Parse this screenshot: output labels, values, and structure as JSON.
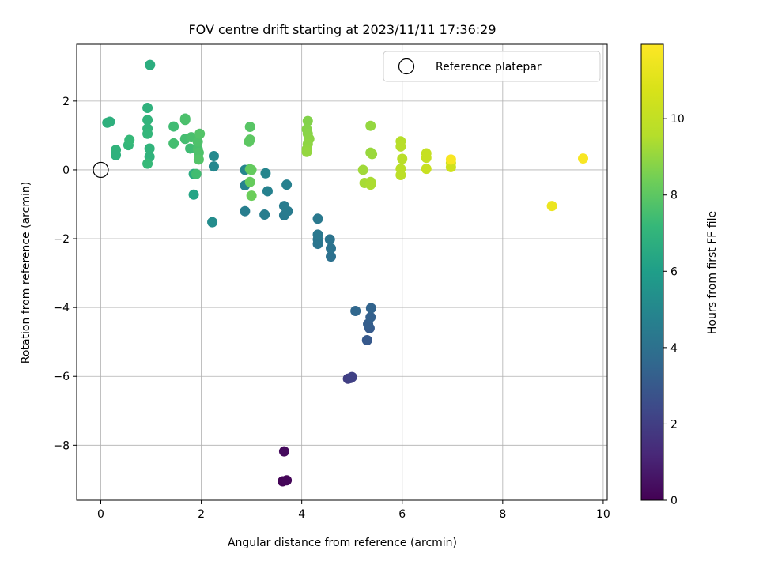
{
  "chart_data": {
    "type": "scatter",
    "title": "FOV centre drift starting at 2023/11/11 17:36:29",
    "xlabel": "Angular distance from reference (arcmin)",
    "ylabel": "Rotation from reference (arcmin)",
    "xlim": [
      -0.48,
      10.08
    ],
    "ylim": [
      -9.6,
      3.65
    ],
    "xticks": [
      0,
      2,
      4,
      6,
      8,
      10
    ],
    "yticks": [
      -8,
      -6,
      -4,
      -2,
      0,
      2
    ],
    "grid": true,
    "legend": {
      "placement": "upper right",
      "entries": [
        "Reference platepar"
      ]
    },
    "reference_point": {
      "x": 0,
      "y": 0
    },
    "colorbar": {
      "label": "Hours from first FF file",
      "min": 0,
      "max": 11.95,
      "ticks": [
        0,
        2,
        4,
        6,
        8,
        10
      ],
      "colormap": "viridis"
    },
    "series": [
      {
        "points": [
          {
            "x": 3.62,
            "y": -9.05,
            "h": 0.1
          },
          {
            "x": 3.7,
            "y": -9.02,
            "h": 0.15
          },
          {
            "x": 3.65,
            "y": -8.18,
            "h": 0.3
          },
          {
            "x": 4.92,
            "y": -6.07,
            "h": 2.0
          },
          {
            "x": 4.97,
            "y": -6.05,
            "h": 2.05
          },
          {
            "x": 5.0,
            "y": -6.02,
            "h": 2.1
          },
          {
            "x": 5.3,
            "y": -4.95,
            "h": 3.0
          },
          {
            "x": 5.35,
            "y": -4.6,
            "h": 3.1
          },
          {
            "x": 5.32,
            "y": -4.48,
            "h": 3.2
          },
          {
            "x": 5.37,
            "y": -4.28,
            "h": 3.3
          },
          {
            "x": 5.38,
            "y": -4.02,
            "h": 3.45
          },
          {
            "x": 5.07,
            "y": -4.1,
            "h": 3.6
          },
          {
            "x": 4.58,
            "y": -2.52,
            "h": 4.0
          },
          {
            "x": 4.58,
            "y": -2.28,
            "h": 4.1
          },
          {
            "x": 4.56,
            "y": -2.02,
            "h": 4.15
          },
          {
            "x": 4.32,
            "y": -2.15,
            "h": 4.2
          },
          {
            "x": 4.32,
            "y": -2.02,
            "h": 4.25
          },
          {
            "x": 4.32,
            "y": -1.88,
            "h": 4.3
          },
          {
            "x": 4.32,
            "y": -1.42,
            "h": 4.35
          },
          {
            "x": 3.65,
            "y": -1.32,
            "h": 4.4
          },
          {
            "x": 3.72,
            "y": -1.2,
            "h": 4.45
          },
          {
            "x": 3.65,
            "y": -1.05,
            "h": 4.5
          },
          {
            "x": 3.26,
            "y": -1.3,
            "h": 4.55
          },
          {
            "x": 2.87,
            "y": -1.2,
            "h": 4.6
          },
          {
            "x": 3.7,
            "y": -0.43,
            "h": 4.7
          },
          {
            "x": 3.32,
            "y": -0.62,
            "h": 4.75
          },
          {
            "x": 2.87,
            "y": -0.45,
            "h": 4.8
          },
          {
            "x": 3.28,
            "y": -0.1,
            "h": 4.9
          },
          {
            "x": 2.87,
            "y": 0.0,
            "h": 4.95
          },
          {
            "x": 2.25,
            "y": 0.1,
            "h": 5.0
          },
          {
            "x": 2.25,
            "y": 0.4,
            "h": 5.1
          },
          {
            "x": 2.22,
            "y": -1.52,
            "h": 5.2
          },
          {
            "x": 1.85,
            "y": -0.72,
            "h": 6.3
          },
          {
            "x": 0.98,
            "y": 3.05,
            "h": 6.7
          },
          {
            "x": 0.93,
            "y": 1.8,
            "h": 6.9
          },
          {
            "x": 0.93,
            "y": 1.45,
            "h": 7.0
          },
          {
            "x": 0.93,
            "y": 1.2,
            "h": 7.05
          },
          {
            "x": 0.93,
            "y": 1.05,
            "h": 7.1
          },
          {
            "x": 0.97,
            "y": 0.62,
            "h": 7.0
          },
          {
            "x": 0.97,
            "y": 0.38,
            "h": 6.95
          },
          {
            "x": 0.93,
            "y": 0.18,
            "h": 7.2
          },
          {
            "x": 0.18,
            "y": 1.4,
            "h": 6.8
          },
          {
            "x": 0.13,
            "y": 1.37,
            "h": 6.85
          },
          {
            "x": 0.3,
            "y": 0.58,
            "h": 7.0
          },
          {
            "x": 0.3,
            "y": 0.43,
            "h": 6.9
          },
          {
            "x": 0.55,
            "y": 0.72,
            "h": 7.1
          },
          {
            "x": 0.57,
            "y": 0.87,
            "h": 7.2
          },
          {
            "x": 1.45,
            "y": 1.26,
            "h": 7.4
          },
          {
            "x": 1.45,
            "y": 0.77,
            "h": 7.5
          },
          {
            "x": 1.68,
            "y": 1.45,
            "h": 7.6
          },
          {
            "x": 1.68,
            "y": 1.49,
            "h": 7.65
          },
          {
            "x": 1.68,
            "y": 0.9,
            "h": 7.5
          },
          {
            "x": 1.78,
            "y": 0.62,
            "h": 7.4
          },
          {
            "x": 1.8,
            "y": 0.95,
            "h": 7.6
          },
          {
            "x": 1.85,
            "y": -0.12,
            "h": 6.6
          },
          {
            "x": 1.9,
            "y": -0.12,
            "h": 7.45
          },
          {
            "x": 1.93,
            "y": 0.6,
            "h": 7.6
          },
          {
            "x": 1.93,
            "y": 0.82,
            "h": 7.7
          },
          {
            "x": 1.97,
            "y": 1.05,
            "h": 7.8
          },
          {
            "x": 1.95,
            "y": 0.5,
            "h": 7.7
          },
          {
            "x": 1.95,
            "y": 0.3,
            "h": 7.8
          },
          {
            "x": 2.97,
            "y": 1.25,
            "h": 7.9
          },
          {
            "x": 2.97,
            "y": 0.88,
            "h": 8.0
          },
          {
            "x": 2.95,
            "y": 0.82,
            "h": 8.0
          },
          {
            "x": 2.97,
            "y": 0.02,
            "h": 8.1
          },
          {
            "x": 3.0,
            "y": 0.0,
            "h": 8.15
          },
          {
            "x": 2.97,
            "y": -0.35,
            "h": 8.2
          },
          {
            "x": 3.0,
            "y": -0.75,
            "h": 8.3
          },
          {
            "x": 4.12,
            "y": 1.42,
            "h": 8.7
          },
          {
            "x": 4.1,
            "y": 1.18,
            "h": 8.75
          },
          {
            "x": 4.12,
            "y": 1.05,
            "h": 8.8
          },
          {
            "x": 4.15,
            "y": 0.9,
            "h": 8.85
          },
          {
            "x": 4.12,
            "y": 0.75,
            "h": 8.9
          },
          {
            "x": 4.1,
            "y": 0.6,
            "h": 8.95
          },
          {
            "x": 4.1,
            "y": 0.52,
            "h": 9.0
          },
          {
            "x": 5.37,
            "y": 1.28,
            "h": 9.0
          },
          {
            "x": 5.37,
            "y": 0.5,
            "h": 9.05
          },
          {
            "x": 5.4,
            "y": 0.46,
            "h": 9.1
          },
          {
            "x": 5.22,
            "y": 0.0,
            "h": 9.2
          },
          {
            "x": 5.25,
            "y": -0.38,
            "h": 9.3
          },
          {
            "x": 5.37,
            "y": -0.35,
            "h": 9.35
          },
          {
            "x": 5.37,
            "y": -0.43,
            "h": 9.4
          },
          {
            "x": 5.97,
            "y": 0.83,
            "h": 9.6
          },
          {
            "x": 5.97,
            "y": 0.68,
            "h": 9.65
          },
          {
            "x": 6.0,
            "y": 0.32,
            "h": 9.7
          },
          {
            "x": 5.97,
            "y": 0.03,
            "h": 9.75
          },
          {
            "x": 5.97,
            "y": -0.15,
            "h": 9.8
          },
          {
            "x": 6.48,
            "y": 0.48,
            "h": 10.1
          },
          {
            "x": 6.48,
            "y": 0.35,
            "h": 10.15
          },
          {
            "x": 6.48,
            "y": 0.03,
            "h": 10.2
          },
          {
            "x": 6.97,
            "y": 0.2,
            "h": 10.4
          },
          {
            "x": 6.97,
            "y": 0.08,
            "h": 10.45
          },
          {
            "x": 6.97,
            "y": 0.3,
            "h": 11.8
          },
          {
            "x": 8.98,
            "y": -1.05,
            "h": 11.4
          },
          {
            "x": 9.6,
            "y": 0.33,
            "h": 11.8
          }
        ]
      }
    ]
  }
}
